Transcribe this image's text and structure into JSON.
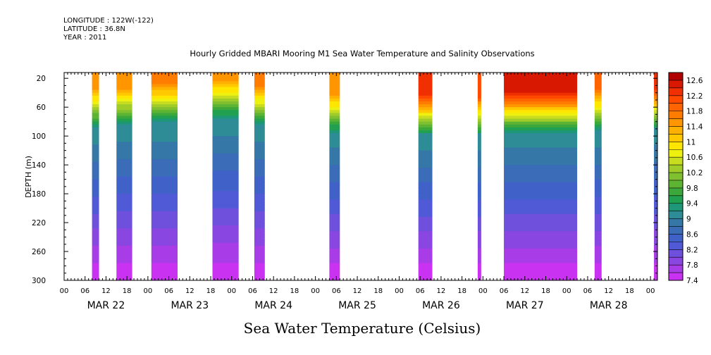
{
  "meta": {
    "longitude": "LONGITUDE : 122W(-122)",
    "latitude": "LATITUDE : 36.8N",
    "year": "YEAR : 2011"
  },
  "chart_data": {
    "type": "heatmap",
    "title": "Hourly Gridded MBARI Mooring M1 Sea Water Temperature and Salinity Observations",
    "xlabel": "Sea Water Temperature (Celsius)",
    "ylabel": "DEPTH (m)",
    "x_unit": "hours since MAR 22 00:00",
    "xlim": [
      0,
      170
    ],
    "ylim": [
      300,
      12
    ],
    "y_ticks": [
      20,
      60,
      100,
      140,
      180,
      220,
      260,
      300
    ],
    "x_tick_labels": [
      "00",
      "06",
      "12",
      "18",
      "00",
      "06",
      "12",
      "18",
      "00",
      "06",
      "12",
      "18",
      "00",
      "06",
      "12",
      "18",
      "00",
      "06",
      "12",
      "18",
      "00",
      "06",
      "12",
      "18",
      "00",
      "06",
      "12",
      "18",
      "00"
    ],
    "date_labels": [
      "MAR 22",
      "MAR 23",
      "MAR 24",
      "MAR 25",
      "MAR 26",
      "MAR 27",
      "MAR 28"
    ],
    "colorbar": {
      "min": 7.4,
      "max": 12.8,
      "step": 0.2,
      "tick_labels": [
        "7.4",
        "7.8",
        "8.2",
        "8.6",
        "9",
        "9.4",
        "9.8",
        "10.2",
        "10.6",
        "11",
        "11.4",
        "11.8",
        "12.2",
        "12.6"
      ],
      "colors": [
        "#c832f0",
        "#a83ce6",
        "#8a46e0",
        "#6e50dc",
        "#505ad6",
        "#4062c8",
        "#3a6cb8",
        "#3578a8",
        "#2e8c96",
        "#1e9678",
        "#20a050",
        "#3ca83c",
        "#5cb432",
        "#80c030",
        "#a0cc2a",
        "#c8dc20",
        "#eef010",
        "#ffe600",
        "#ffc800",
        "#ffb000",
        "#ff9600",
        "#ff7c00",
        "#ff6400",
        "#ff4a00",
        "#f03000",
        "#d81800",
        "#b00000"
      ]
    },
    "segments": [
      {
        "start": 8,
        "end": 10,
        "surface_temp": 11.4,
        "thermocline_depth": 60
      },
      {
        "start": 15,
        "end": 19.5,
        "surface_temp": 11.6,
        "thermocline_depth": 55
      },
      {
        "start": 25,
        "end": 32.5,
        "surface_temp": 11.7,
        "thermocline_depth": 52
      },
      {
        "start": 42.5,
        "end": 50,
        "surface_temp": 11.6,
        "thermocline_depth": 45
      },
      {
        "start": 54.5,
        "end": 57.5,
        "surface_temp": 11.7,
        "thermocline_depth": 55
      },
      {
        "start": 76,
        "end": 79,
        "surface_temp": 11.6,
        "thermocline_depth": 65
      },
      {
        "start": 101.5,
        "end": 105.5,
        "surface_temp": 12.3,
        "thermocline_depth": 68
      },
      {
        "start": 118.5,
        "end": 119.5,
        "surface_temp": 12.2,
        "thermocline_depth": 68
      },
      {
        "start": 126,
        "end": 147,
        "surface_temp": 12.5,
        "thermocline_depth": 65
      },
      {
        "start": 152,
        "end": 154,
        "surface_temp": 11.8,
        "thermocline_depth": 62
      },
      {
        "start": 169,
        "end": 170,
        "surface_temp": 12.3,
        "thermocline_depth": 60
      }
    ],
    "bottom_temp": 7.4
  }
}
